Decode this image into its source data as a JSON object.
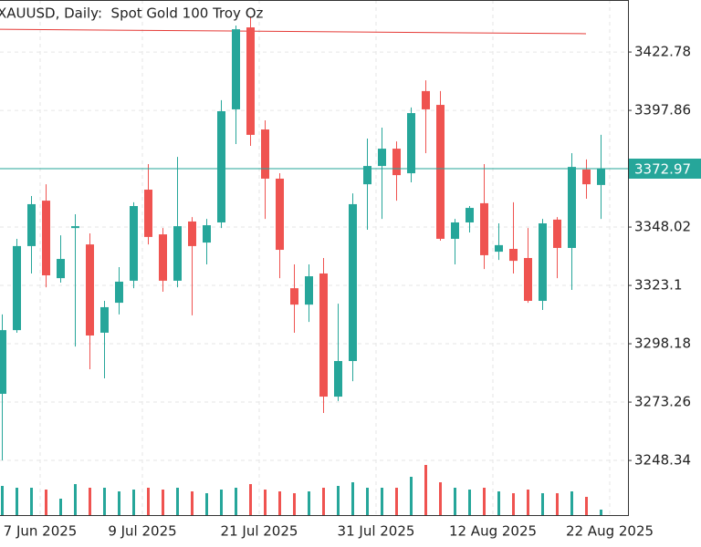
{
  "chart_data": {
    "type": "candlestick",
    "title": "XAUUSD, Daily:  Spot Gold 100 Troy Oz",
    "categories": [
      null,
      null,
      "7 Jun 2025",
      null,
      null,
      null,
      null,
      null,
      null,
      "9 Jul 2025",
      null,
      null,
      null,
      null,
      null,
      null,
      null,
      "21 Jul 2025",
      null,
      null,
      null,
      null,
      null,
      null,
      null,
      "31 Jul 2025",
      null,
      null,
      null,
      null,
      null,
      null,
      null,
      "12 Aug 2025",
      null,
      null,
      null,
      null,
      null,
      null,
      null,
      "22 Aug 2025"
    ],
    "open": [
      3276.8,
      3304.0,
      3339.9,
      3359.3,
      3326.2,
      3347.6,
      3340.6,
      3302.9,
      3315.7,
      3325.1,
      3364.0,
      3344.9,
      3325.1,
      3350.4,
      3341.4,
      3350.0,
      3398.3,
      3433.3,
      3389.7,
      3368.7,
      3321.9,
      3314.9,
      3328.2,
      3275.6,
      3290.8,
      3366.3,
      3374.1,
      3381.5,
      3371.0,
      3406.1,
      3400.2,
      3343.0,
      3350.0,
      3358.2,
      3337.5,
      3338.7,
      3334.8,
      3316.5,
      3351.2,
      3339.1,
      3372.6,
      3366.0
    ],
    "high": [
      3310.7,
      3343.0,
      3361.3,
      3366.3,
      3344.5,
      3353.5,
      3345.3,
      3316.5,
      3330.9,
      3358.6,
      3374.9,
      3347.6,
      3378.0,
      3352.3,
      3351.5,
      3402.2,
      3434.1,
      3438.0,
      3393.6,
      3371.0,
      3332.1,
      3332.1,
      3334.8,
      3315.3,
      3362.4,
      3385.8,
      3390.5,
      3384.6,
      3399.1,
      3410.7,
      3406.1,
      3351.5,
      3357.0,
      3374.9,
      3349.6,
      3358.6,
      3347.6,
      3351.5,
      3352.3,
      3379.6,
      3376.9,
      3387.4
    ],
    "low": [
      3248.4,
      3302.9,
      3328.2,
      3322.3,
      3324.3,
      3297.0,
      3287.3,
      3283.4,
      3310.7,
      3321.9,
      3340.6,
      3320.4,
      3322.3,
      3310.3,
      3332.1,
      3347.6,
      3383.5,
      3382.7,
      3351.5,
      3326.2,
      3302.9,
      3307.5,
      3268.6,
      3273.7,
      3282.2,
      3346.9,
      3351.5,
      3359.3,
      3367.1,
      3379.6,
      3342.2,
      3332.1,
      3345.7,
      3330.1,
      3334.0,
      3328.2,
      3315.7,
      3312.6,
      3326.2,
      3321.2,
      3360.1,
      3351.5
    ],
    "close": [
      3304.0,
      3339.9,
      3357.8,
      3327.4,
      3334.4,
      3348.4,
      3301.7,
      3313.8,
      3324.7,
      3357.0,
      3343.8,
      3325.1,
      3348.4,
      3339.9,
      3348.8,
      3397.5,
      3432.5,
      3387.4,
      3368.7,
      3338.3,
      3314.9,
      3327.0,
      3275.6,
      3290.8,
      3357.8,
      3374.1,
      3381.5,
      3370.2,
      3396.7,
      3398.3,
      3343.0,
      3350.0,
      3356.2,
      3336.0,
      3340.3,
      3333.6,
      3316.5,
      3349.6,
      3339.1,
      3373.7,
      3366.3,
      3372.97
    ],
    "volume": [
      32,
      30,
      30,
      28,
      18,
      34,
      30,
      30,
      26,
      28,
      30,
      28,
      30,
      26,
      24,
      28,
      30,
      34,
      28,
      26,
      24,
      26,
      30,
      32,
      36,
      30,
      30,
      30,
      42,
      55,
      36,
      30,
      28,
      30,
      26,
      24,
      28,
      24,
      24,
      26,
      20,
      6
    ],
    "up_color": "#26a69a",
    "down_color": "#ef5350",
    "current_price": 3372.97,
    "overlay_line": {
      "color": "#e53935",
      "values": [
        3432.5,
        3430.6
      ]
    },
    "ylim": [
      3225,
      3445
    ],
    "yticks": [
      3248.34,
      3273.26,
      3298.18,
      3323.1,
      3348.02,
      3372.97,
      3397.86,
      3422.78
    ],
    "grid": true
  }
}
